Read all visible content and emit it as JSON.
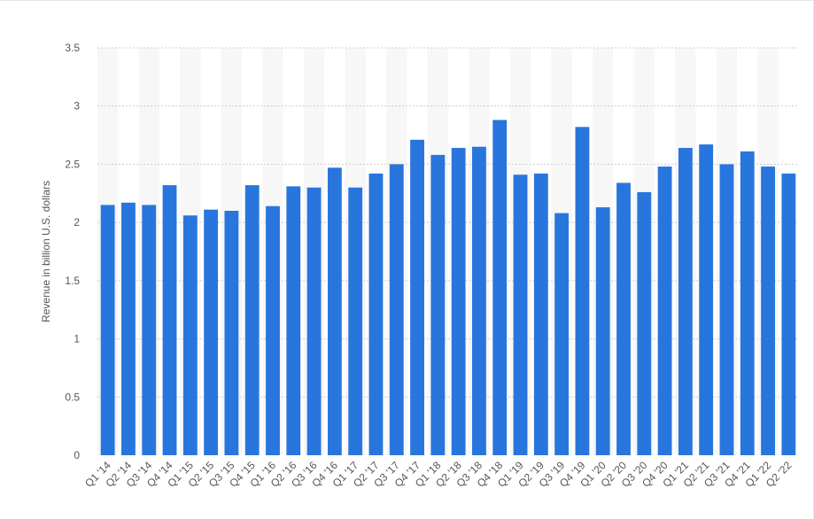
{
  "chart_data": {
    "type": "bar",
    "title": "",
    "xlabel": "",
    "ylabel": "Revenue in billion U.S. dollars",
    "ylim": [
      0,
      3.5
    ],
    "yticks": [
      "0",
      "0.5",
      "1",
      "1.5",
      "2",
      "2.5",
      "3",
      "3.5"
    ],
    "grid": true,
    "bar_color": "#2876dd",
    "band_color": "#f7f7f7",
    "grid_color": "#cccccc",
    "categories": [
      "Q1 '14",
      "Q2 '14",
      "Q3 '14",
      "Q4 '14",
      "Q1 '15",
      "Q2 '15",
      "Q3 '15",
      "Q4 '15",
      "Q1 '16",
      "Q2 '16",
      "Q3 '16",
      "Q4 '16",
      "Q1 '17",
      "Q2 '17",
      "Q3 '17",
      "Q4 '17",
      "Q1 '18",
      "Q2 '18",
      "Q3 '18",
      "Q4 '18",
      "Q1 '19",
      "Q2 '19",
      "Q3 '19",
      "Q4 '19",
      "Q1 '20",
      "Q2 '20",
      "Q3 '20",
      "Q4 '20",
      "Q1 '21",
      "Q2 '21",
      "Q3 '21",
      "Q4 '21",
      "Q1 '22",
      "Q2 '22"
    ],
    "values": [
      2.15,
      2.17,
      2.15,
      2.32,
      2.06,
      2.11,
      2.1,
      2.32,
      2.14,
      2.31,
      2.3,
      2.47,
      2.3,
      2.42,
      2.5,
      2.71,
      2.58,
      2.64,
      2.65,
      2.88,
      2.41,
      2.42,
      2.08,
      2.82,
      2.13,
      2.34,
      2.26,
      2.48,
      2.64,
      2.67,
      2.5,
      2.61,
      2.48,
      2.42
    ]
  }
}
